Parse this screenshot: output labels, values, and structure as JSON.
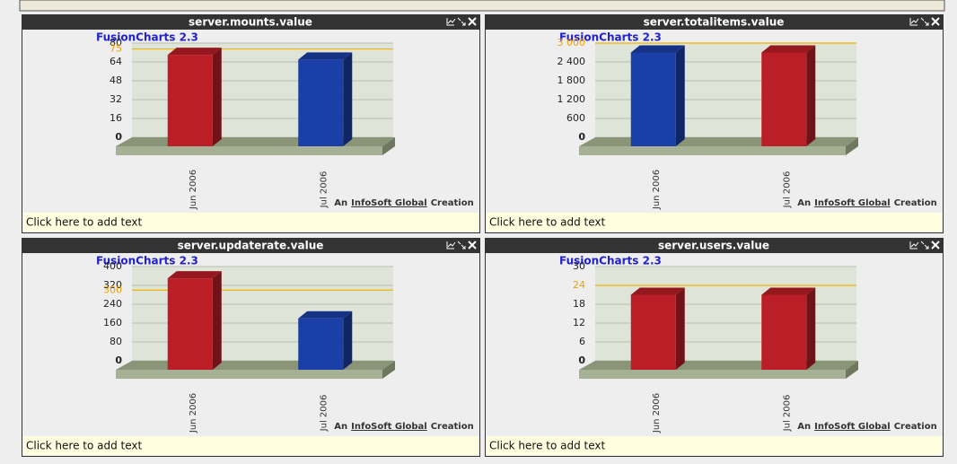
{
  "chart_data": [
    {
      "type": "bar",
      "title": "server.mounts.value",
      "brand": "FusionCharts 2.3",
      "credit": [
        "An",
        "InfoSoft Global",
        "Creation"
      ],
      "footer": "Click here to add text",
      "categories": [
        "Jun 2006",
        "Jul 2006"
      ],
      "values": [
        70,
        66
      ],
      "colors": [
        "#bb1e27",
        "#1a3fa6"
      ],
      "ylim": [
        0,
        80
      ],
      "yticks": [
        0,
        16,
        32,
        48,
        64,
        80
      ],
      "threshold": 75,
      "grid": true
    },
    {
      "type": "bar",
      "title": "server.totalitems.value",
      "brand": "FusionCharts 2.3",
      "credit": [
        "An",
        "InfoSoft Global",
        "Creation"
      ],
      "footer": "Click here to add text",
      "categories": [
        "Jun 2006",
        "Jul 2006"
      ],
      "values": [
        2700,
        2700
      ],
      "colors": [
        "#1a3fa6",
        "#bb1e27"
      ],
      "ylim": [
        0,
        3000
      ],
      "yticks": [
        0,
        600,
        {
          "value": 1200,
          "label": "1 200"
        },
        {
          "value": 1800,
          "label": "1 800"
        },
        {
          "value": 2400,
          "label": "2 400"
        },
        {
          "value": 3000,
          "label": "3 000"
        }
      ],
      "threshold": 3000,
      "grid": true
    },
    {
      "type": "bar",
      "title": "server.updaterate.value",
      "brand": "FusionCharts 2.3",
      "credit": [
        "An",
        "InfoSoft Global",
        "Creation"
      ],
      "footer": "Click here to add text",
      "categories": [
        "Jun 2006",
        "Jul 2006"
      ],
      "values": [
        350,
        180
      ],
      "colors": [
        "#bb1e27",
        "#1a3fa6"
      ],
      "ylim": [
        0,
        400
      ],
      "yticks": [
        0,
        80,
        160,
        240,
        320,
        400
      ],
      "threshold": 300,
      "grid": true
    },
    {
      "type": "bar",
      "title": "server.users.value",
      "brand": "FusionCharts 2.3",
      "credit": [
        "An",
        "InfoSoft Global",
        "Creation"
      ],
      "footer": "Click here to add text",
      "categories": [
        "Jun 2006",
        "Jul 2006"
      ],
      "values": [
        21,
        21
      ],
      "colors": [
        "#bb1e27",
        "#bb1e27"
      ],
      "ylim": [
        0,
        30
      ],
      "yticks": [
        0,
        6,
        12,
        18,
        24,
        30
      ],
      "threshold": 24,
      "grid": true
    }
  ]
}
